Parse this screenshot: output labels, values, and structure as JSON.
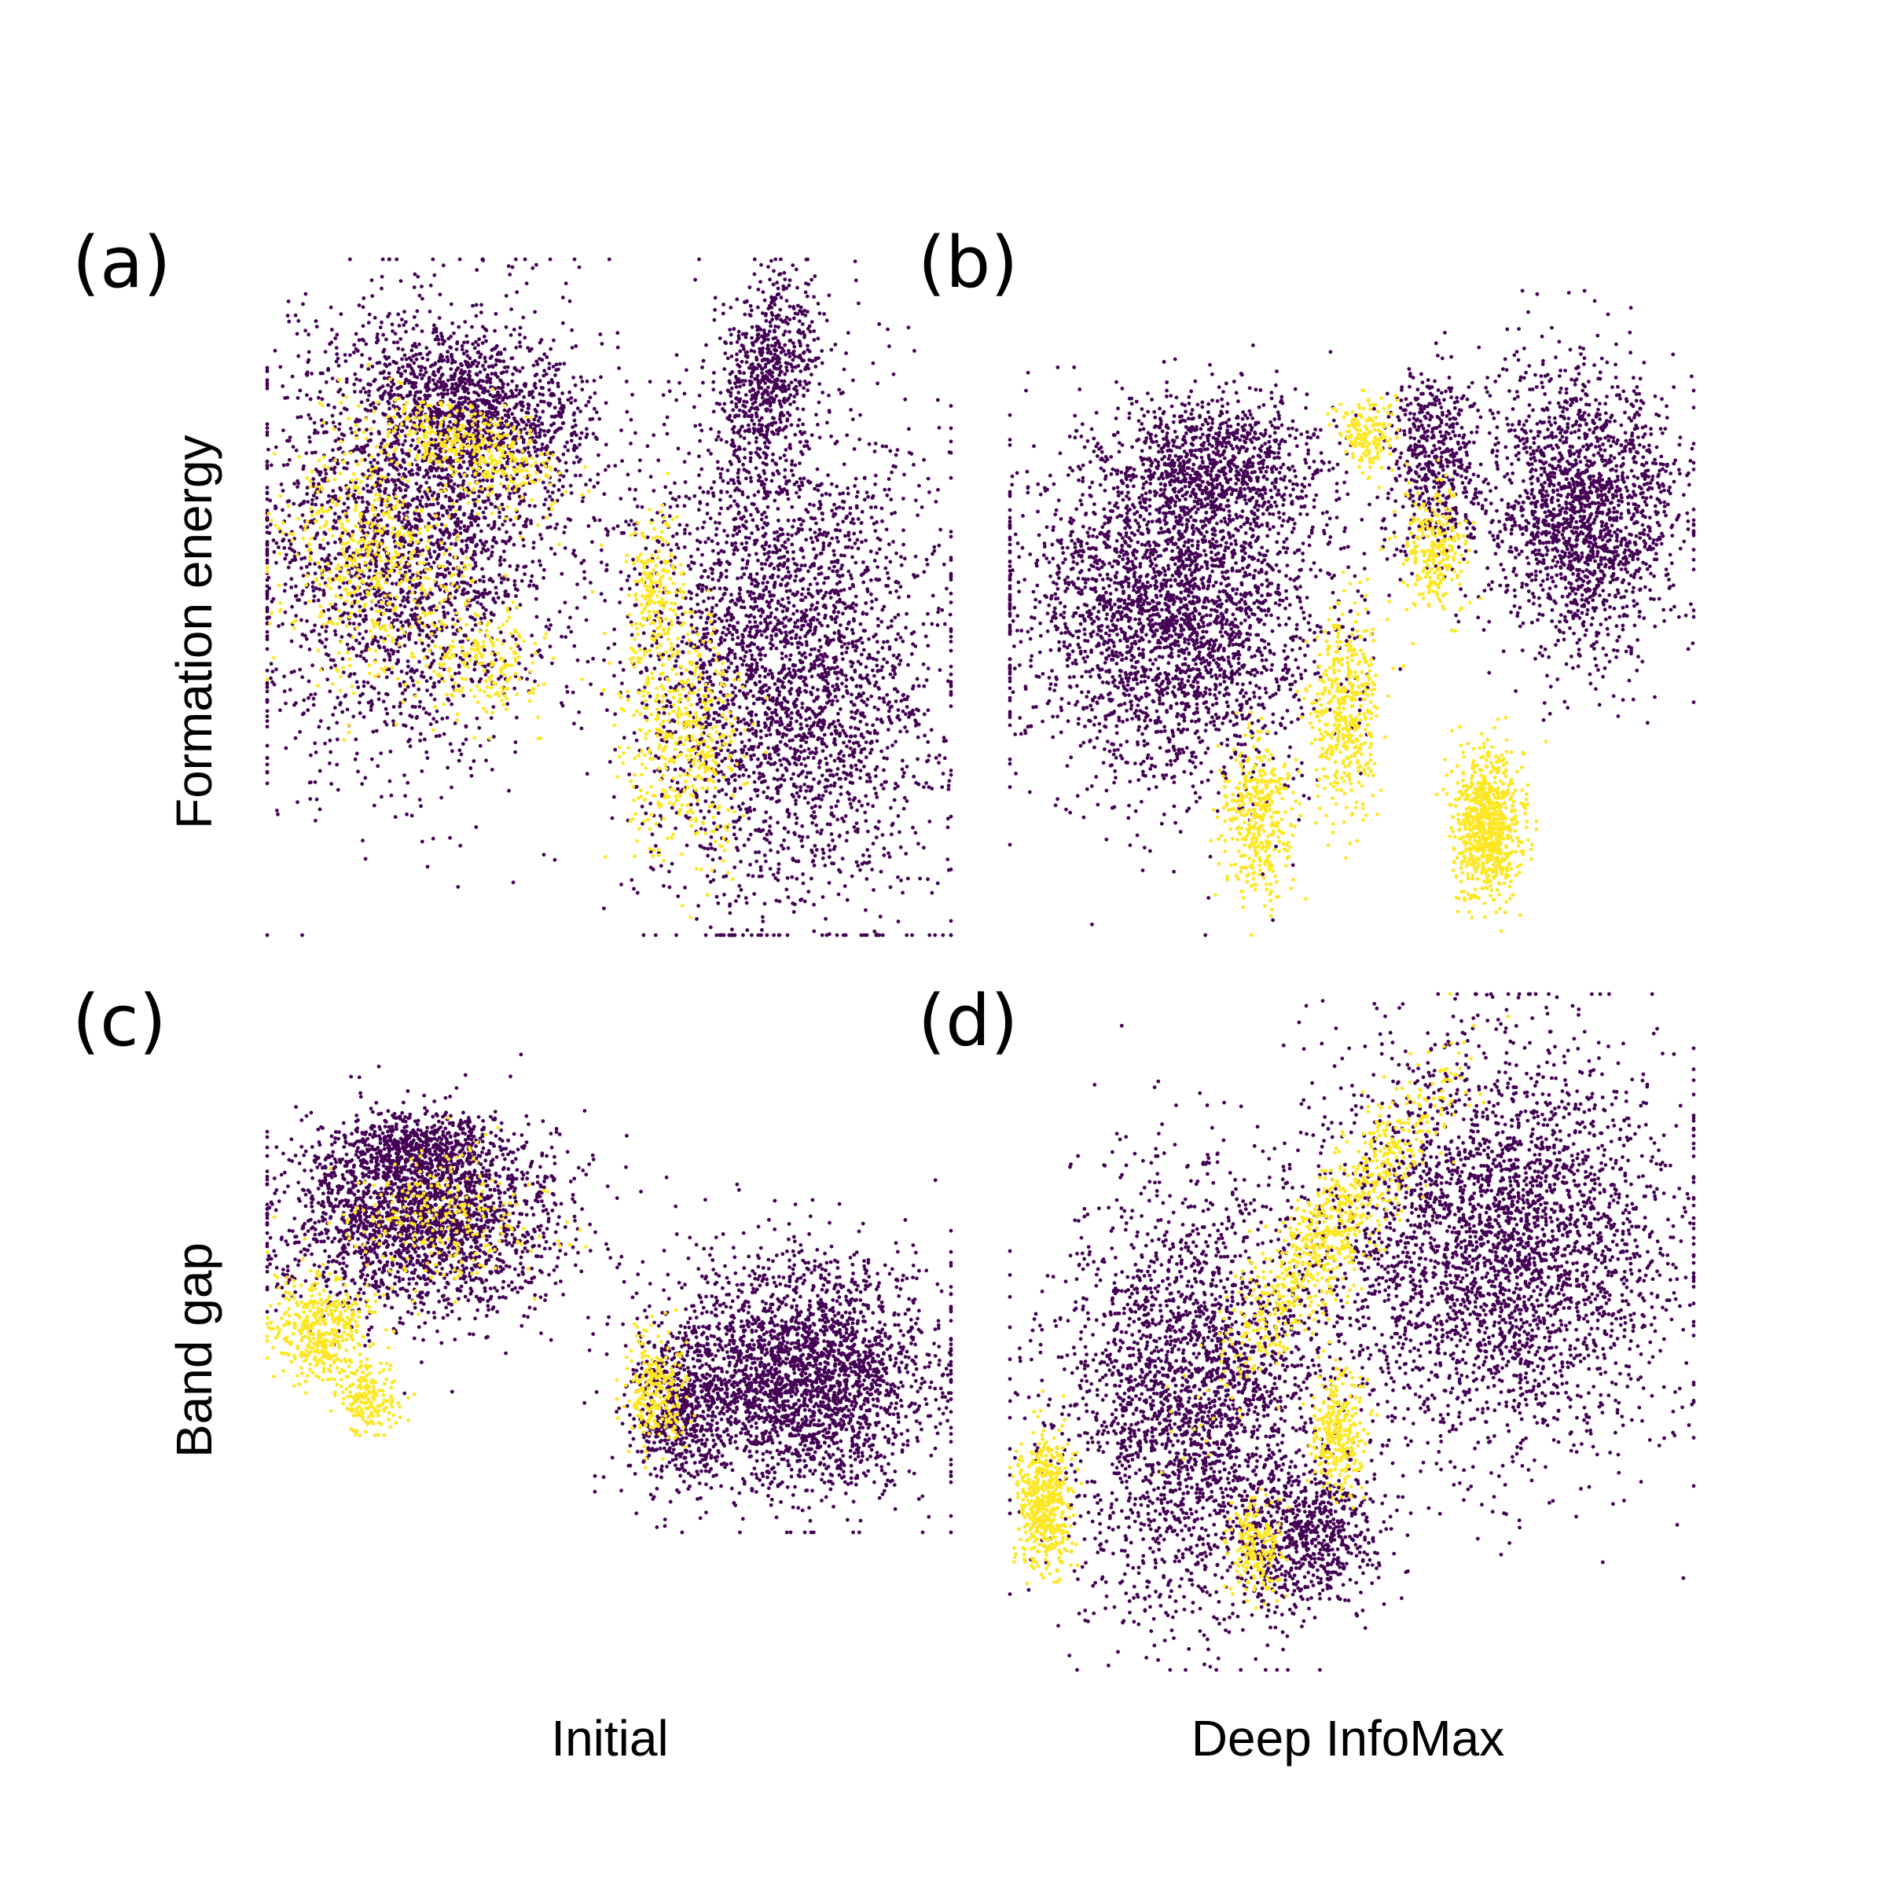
{
  "colors": {
    "low": "#440154",
    "high": "#fde725",
    "background": "#ffffff"
  },
  "labels": {
    "rows": [
      "Formation energy",
      "Band gap"
    ],
    "cols": [
      "Initial",
      "Deep InfoMax"
    ]
  },
  "chart_data": [
    {
      "type": "scatter",
      "panel": "(a)",
      "row": "Formation energy",
      "column": "Initial",
      "axes": "hidden",
      "grid": false,
      "xlim": [
        0,
        1
      ],
      "ylim": [
        0,
        1
      ],
      "clusters": [
        {
          "cx": 0.22,
          "cy": 0.6,
          "rx": 0.22,
          "ry": 0.34,
          "angle": -10,
          "label": 0,
          "n": 2600
        },
        {
          "cx": 0.3,
          "cy": 0.78,
          "rx": 0.2,
          "ry": 0.1,
          "angle": -15,
          "label": 0,
          "n": 900
        },
        {
          "cx": 0.16,
          "cy": 0.55,
          "rx": 0.13,
          "ry": 0.18,
          "angle": 10,
          "label": 1,
          "n": 550
        },
        {
          "cx": 0.3,
          "cy": 0.72,
          "rx": 0.15,
          "ry": 0.06,
          "angle": -25,
          "label": 1,
          "n": 380
        },
        {
          "cx": 0.32,
          "cy": 0.4,
          "rx": 0.08,
          "ry": 0.08,
          "angle": 0,
          "label": 1,
          "n": 180
        },
        {
          "cx": 0.76,
          "cy": 0.4,
          "rx": 0.22,
          "ry": 0.36,
          "angle": 0,
          "label": 0,
          "n": 3000
        },
        {
          "cx": 0.73,
          "cy": 0.82,
          "rx": 0.07,
          "ry": 0.16,
          "angle": -10,
          "label": 0,
          "n": 700
        },
        {
          "cx": 0.61,
          "cy": 0.3,
          "rx": 0.09,
          "ry": 0.18,
          "angle": 5,
          "label": 1,
          "n": 520
        },
        {
          "cx": 0.57,
          "cy": 0.52,
          "rx": 0.04,
          "ry": 0.1,
          "angle": 0,
          "label": 1,
          "n": 160
        }
      ]
    },
    {
      "type": "scatter",
      "panel": "(b)",
      "row": "Formation energy",
      "column": "Deep InfoMax",
      "axes": "hidden",
      "grid": false,
      "xlim": [
        0,
        1
      ],
      "ylim": [
        0,
        1
      ],
      "clusters": [
        {
          "cx": 0.24,
          "cy": 0.5,
          "rx": 0.22,
          "ry": 0.26,
          "angle": 0,
          "label": 0,
          "n": 2800
        },
        {
          "cx": 0.3,
          "cy": 0.72,
          "rx": 0.16,
          "ry": 0.12,
          "angle": 0,
          "label": 0,
          "n": 900
        },
        {
          "cx": 0.84,
          "cy": 0.66,
          "rx": 0.14,
          "ry": 0.22,
          "angle": 0,
          "label": 0,
          "n": 1800
        },
        {
          "cx": 0.62,
          "cy": 0.74,
          "rx": 0.07,
          "ry": 0.14,
          "angle": 0,
          "label": 0,
          "n": 500
        },
        {
          "cx": 0.7,
          "cy": 0.17,
          "rx": 0.05,
          "ry": 0.11,
          "angle": 0,
          "label": 1,
          "n": 800
        },
        {
          "cx": 0.49,
          "cy": 0.35,
          "rx": 0.05,
          "ry": 0.16,
          "angle": 0,
          "label": 1,
          "n": 450
        },
        {
          "cx": 0.36,
          "cy": 0.18,
          "rx": 0.05,
          "ry": 0.13,
          "angle": 0,
          "label": 1,
          "n": 400
        },
        {
          "cx": 0.62,
          "cy": 0.6,
          "rx": 0.05,
          "ry": 0.1,
          "angle": 0,
          "label": 1,
          "n": 260
        },
        {
          "cx": 0.52,
          "cy": 0.78,
          "rx": 0.04,
          "ry": 0.06,
          "angle": 0,
          "label": 1,
          "n": 160
        }
      ]
    },
    {
      "type": "scatter",
      "panel": "(c)",
      "row": "Band gap",
      "column": "Initial",
      "axes": "hidden",
      "grid": false,
      "xlim": [
        0,
        1
      ],
      "ylim": [
        0,
        1
      ],
      "clusters": [
        {
          "cx": 0.22,
          "cy": 0.65,
          "rx": 0.2,
          "ry": 0.2,
          "angle": -15,
          "label": 0,
          "n": 2200
        },
        {
          "cx": 0.22,
          "cy": 0.8,
          "rx": 0.11,
          "ry": 0.08,
          "angle": 0,
          "label": 0,
          "n": 500
        },
        {
          "cx": 0.78,
          "cy": 0.33,
          "rx": 0.2,
          "ry": 0.24,
          "angle": 0,
          "label": 0,
          "n": 2600
        },
        {
          "cx": 0.6,
          "cy": 0.25,
          "rx": 0.07,
          "ry": 0.16,
          "angle": 0,
          "label": 0,
          "n": 500
        },
        {
          "cx": 0.08,
          "cy": 0.42,
          "rx": 0.07,
          "ry": 0.11,
          "angle": 0,
          "label": 1,
          "n": 420
        },
        {
          "cx": 0.15,
          "cy": 0.28,
          "rx": 0.05,
          "ry": 0.08,
          "angle": 0,
          "label": 1,
          "n": 180
        },
        {
          "cx": 0.57,
          "cy": 0.3,
          "rx": 0.04,
          "ry": 0.14,
          "angle": 0,
          "label": 1,
          "n": 260
        },
        {
          "cx": 0.25,
          "cy": 0.65,
          "rx": 0.14,
          "ry": 0.14,
          "angle": 0,
          "label": 1,
          "n": 260
        }
      ]
    },
    {
      "type": "scatter",
      "panel": "(d)",
      "row": "Band gap",
      "column": "Deep InfoMax",
      "axes": "hidden",
      "grid": false,
      "xlim": [
        0,
        1
      ],
      "ylim": [
        0,
        1
      ],
      "clusters": [
        {
          "cx": 0.72,
          "cy": 0.62,
          "rx": 0.26,
          "ry": 0.3,
          "angle": 0,
          "label": 0,
          "n": 3200
        },
        {
          "cx": 0.27,
          "cy": 0.4,
          "rx": 0.2,
          "ry": 0.32,
          "angle": 0,
          "label": 0,
          "n": 2600
        },
        {
          "cx": 0.44,
          "cy": 0.2,
          "rx": 0.1,
          "ry": 0.1,
          "angle": 0,
          "label": 0,
          "n": 600
        },
        {
          "cx": 0.05,
          "cy": 0.25,
          "rx": 0.04,
          "ry": 0.1,
          "angle": 0,
          "label": 1,
          "n": 500
        },
        {
          "cx": 0.48,
          "cy": 0.66,
          "rx": 0.06,
          "ry": 0.28,
          "angle": -35,
          "label": 1,
          "n": 800
        },
        {
          "cx": 0.48,
          "cy": 0.35,
          "rx": 0.04,
          "ry": 0.09,
          "angle": 0,
          "label": 1,
          "n": 300
        },
        {
          "cx": 0.36,
          "cy": 0.18,
          "rx": 0.04,
          "ry": 0.07,
          "angle": 0,
          "label": 1,
          "n": 200
        }
      ]
    }
  ]
}
